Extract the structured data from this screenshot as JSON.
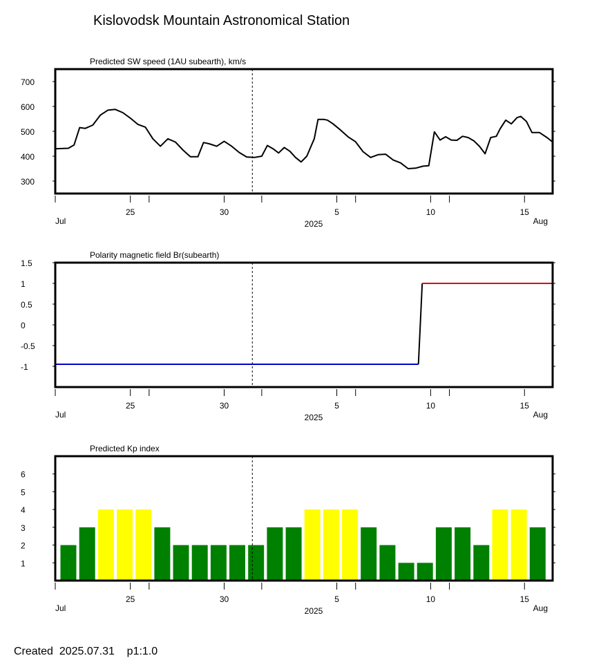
{
  "station_title": "Kislovodsk Mountain Astronomical Station",
  "footer": {
    "created_label": "Created",
    "date": "2025.07.31",
    "page": "p1:1.0"
  },
  "time_axis": {
    "start_day": 21,
    "end_day": 47.5,
    "marker_day": 31.5,
    "ticks": [
      {
        "day": 25,
        "label": "25"
      },
      {
        "day": 30,
        "label": "30"
      },
      {
        "day": 36,
        "label": "5"
      },
      {
        "day": 41,
        "label": "10"
      },
      {
        "day": 46,
        "label": "15"
      }
    ],
    "minor_ticks": [
      21,
      26,
      32,
      37,
      42
    ],
    "month_labels": {
      "left": "Jul",
      "center": "2025",
      "right": "Aug"
    }
  },
  "chart_data": [
    {
      "type": "line",
      "title": "Predicted SW speed (1AU subearth), km/s",
      "ylim": [
        250,
        750
      ],
      "yticks": [
        300,
        400,
        500,
        600,
        700
      ],
      "series": [
        {
          "color": "#000000",
          "x": [
            21.0,
            21.7,
            22.0,
            22.3,
            22.6,
            23.0,
            23.4,
            23.8,
            24.2,
            24.6,
            25.0,
            25.4,
            25.8,
            26.2,
            26.6,
            27.0,
            27.4,
            27.8,
            28.2,
            28.6,
            28.9,
            29.2,
            29.6,
            30.0,
            30.4,
            30.8,
            31.2,
            31.6,
            32.0,
            32.3,
            32.6,
            32.9,
            33.2,
            33.5,
            33.8,
            34.1,
            34.4,
            34.8,
            35.0,
            35.3,
            35.5,
            35.8,
            36.2,
            36.6,
            37.0,
            37.4,
            37.8,
            38.2,
            38.6,
            39.0,
            39.4,
            39.8,
            40.2,
            40.6,
            40.9,
            41.2,
            41.5,
            41.8,
            42.1,
            42.4,
            42.7,
            43.0,
            43.3,
            43.6,
            43.9,
            44.2,
            44.5,
            44.7,
            45.0,
            45.3,
            45.6,
            45.8,
            46.1,
            46.4,
            46.8,
            47.2,
            47.5
          ],
          "y": [
            430,
            432,
            445,
            515,
            512,
            525,
            565,
            585,
            588,
            575,
            553,
            528,
            517,
            470,
            440,
            470,
            457,
            425,
            398,
            398,
            455,
            450,
            440,
            460,
            440,
            415,
            397,
            395,
            400,
            443,
            430,
            413,
            435,
            420,
            395,
            377,
            400,
            470,
            548,
            548,
            545,
            530,
            505,
            478,
            458,
            418,
            395,
            406,
            408,
            385,
            373,
            350,
            352,
            360,
            362,
            498,
            465,
            478,
            465,
            464,
            480,
            475,
            462,
            440,
            410,
            475,
            480,
            510,
            545,
            530,
            555,
            560,
            540,
            495,
            495,
            475,
            457
          ]
        }
      ]
    },
    {
      "type": "line",
      "title": "Polarity magnetic field  Br(subearth)",
      "ylim": [
        -1.5,
        1.5
      ],
      "yticks": [
        -1,
        -0.5,
        0,
        0.5,
        1,
        1.5
      ],
      "ytick_labels": [
        "-1",
        "-0.5",
        "0",
        "0.5",
        "1",
        "1.5"
      ],
      "series": [
        {
          "color": "#0000cc",
          "x": [
            21.0,
            40.35
          ],
          "y": [
            -0.95,
            -0.95
          ]
        },
        {
          "color": "#000000",
          "x": [
            40.35,
            40.55
          ],
          "y": [
            -0.95,
            1.0
          ]
        },
        {
          "color": "#dd0000",
          "x": [
            40.55,
            47.5
          ],
          "y": [
            1.0,
            1.0
          ]
        }
      ]
    },
    {
      "type": "bar",
      "title": "Predicted Kp index",
      "ylim": [
        0,
        7
      ],
      "yticks": [
        1,
        2,
        3,
        4,
        5,
        6
      ],
      "days": [
        21.7,
        22.7,
        23.7,
        24.7,
        25.7,
        26.7,
        27.7,
        28.7,
        29.7,
        30.7,
        31.7,
        32.7,
        33.7,
        34.7,
        35.7,
        36.7,
        37.7,
        38.7,
        39.7,
        40.7,
        41.7,
        42.7,
        43.7,
        44.7,
        45.7,
        46.7
      ],
      "values": [
        2,
        3,
        4,
        4,
        4,
        3,
        2,
        2,
        2,
        2,
        2,
        3,
        3,
        4,
        4,
        4,
        3,
        2,
        1,
        1,
        3,
        3,
        2,
        4,
        4,
        3
      ],
      "colors": {
        "low": "#008000",
        "high": "#ffff00"
      },
      "high_threshold": 4
    }
  ]
}
